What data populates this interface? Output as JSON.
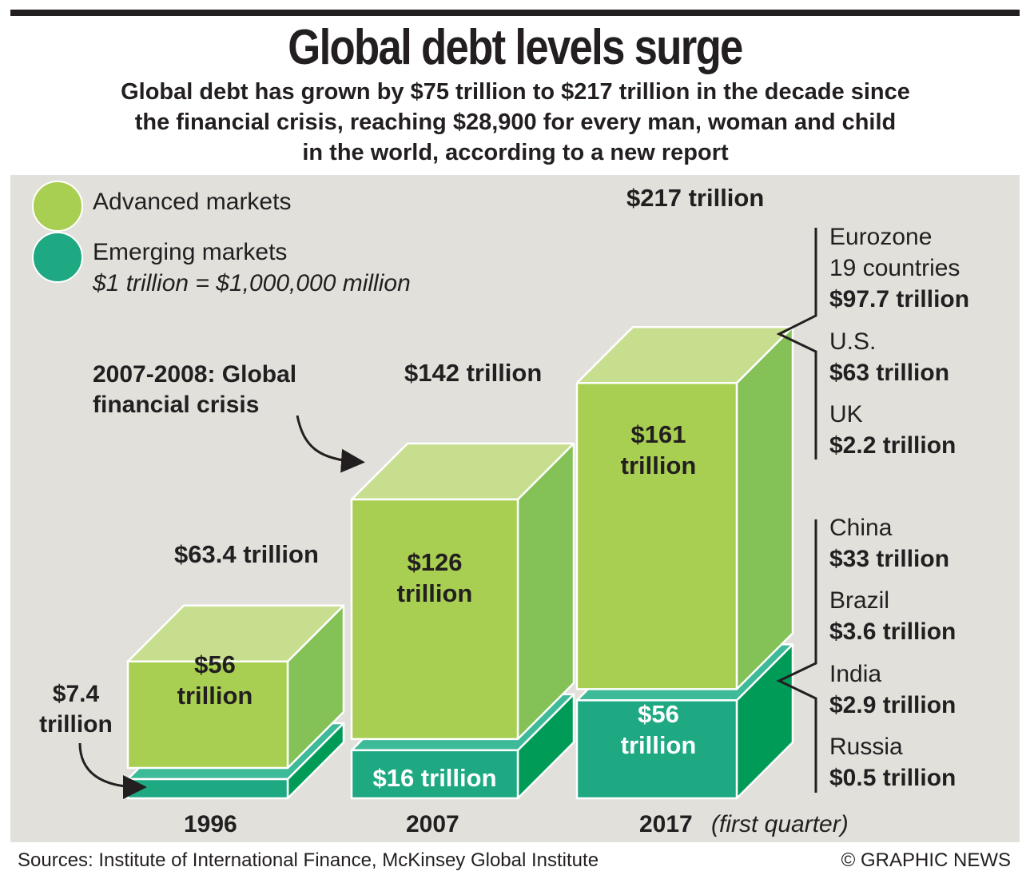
{
  "title": "Global debt levels surge",
  "subtitle_lines": [
    "Global debt has grown by $75 trillion to $217 trillion in the decade since",
    "the financial crisis, reaching $28,900 for every man, woman and child",
    "in the world, according to a new report"
  ],
  "legend": {
    "advanced": "Advanced markets",
    "emerging": "Emerging markets",
    "note": "$1 trillion = $1,000,000 million"
  },
  "annotations": {
    "crisis_lines": [
      "2007-2008: Global",
      "financial crisis"
    ],
    "small_value_lines": [
      "$7.4",
      "trillion"
    ]
  },
  "years": {
    "y1996": "1996",
    "y2007": "2007",
    "y2017": "2017",
    "y2017_note": "(first quarter)"
  },
  "totals": {
    "t1996": "$63.4 trillion",
    "t2007": "$142 trillion",
    "t2017": "$217 trillion"
  },
  "block_labels": {
    "adv1996": [
      "$56",
      "trillion"
    ],
    "adv2007": [
      "$126",
      "trillion"
    ],
    "adv2017": [
      "$161",
      "trillion"
    ],
    "em2007": "$16 trillion",
    "em2017": [
      "$56",
      "trillion"
    ]
  },
  "advanced_breakdown": [
    {
      "name_lines": [
        "Eurozone",
        "19 countries"
      ],
      "value": "$97.7 trillion"
    },
    {
      "name_lines": [
        "U.S."
      ],
      "value": "$63 trillion"
    },
    {
      "name_lines": [
        "UK"
      ],
      "value": "$2.2 trillion"
    }
  ],
  "emerging_breakdown": [
    {
      "name_lines": [
        "China"
      ],
      "value": "$33 trillion"
    },
    {
      "name_lines": [
        "Brazil"
      ],
      "value": "$3.6 trillion"
    },
    {
      "name_lines": [
        "India"
      ],
      "value": "$2.9 trillion"
    },
    {
      "name_lines": [
        "Russia"
      ],
      "value": "$0.5 trillion"
    }
  ],
  "source": "Sources: Institute of International Finance, McKinsey Global Institute",
  "credit": "© GRAPHIC NEWS",
  "colors": {
    "advanced_front": "#a8cf52",
    "advanced_top": "#c6de8e",
    "advanced_side": "#84c157",
    "emerging_front": "#1ea983",
    "emerging_top": "#3dba97",
    "emerging_side": "#009b57",
    "panel": "#e1e0db"
  },
  "chart_data": {
    "type": "bar",
    "stacked": true,
    "categories": [
      "1996",
      "2007",
      "2017"
    ],
    "series": [
      {
        "name": "Emerging markets",
        "values": [
          7.4,
          16,
          56
        ]
      },
      {
        "name": "Advanced markets",
        "values": [
          56,
          126,
          161
        ]
      }
    ],
    "totals": [
      63.4,
      142,
      217
    ],
    "unit": "trillion"
  }
}
